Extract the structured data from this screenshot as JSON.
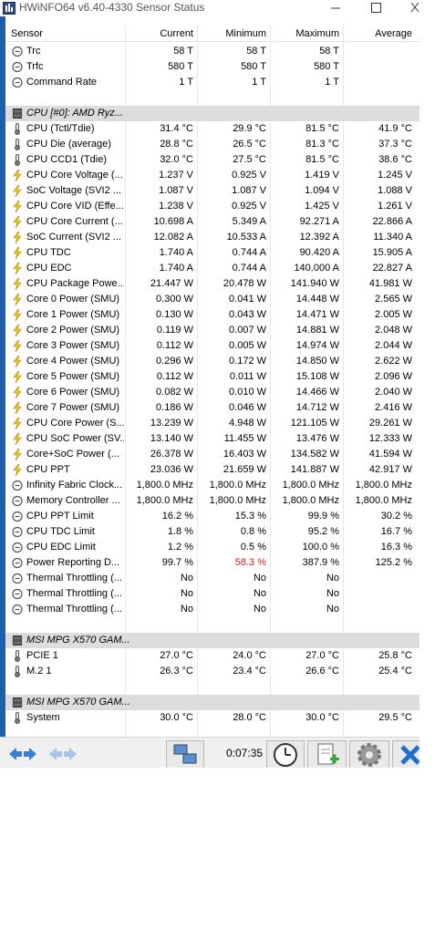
{
  "window": {
    "title": "HWiNFO64 v6.40-4330 Sensor Status"
  },
  "header": [
    "Sensor",
    "Current",
    "Minimum",
    "Maximum",
    "Average"
  ],
  "sections": [
    {
      "rows": [
        {
          "icon": "clock",
          "name": "Trc",
          "values": [
            "58 T",
            "58 T",
            "58 T"
          ]
        },
        {
          "icon": "clock",
          "name": "Trfc",
          "values": [
            "580 T",
            "580 T",
            "580 T"
          ]
        },
        {
          "icon": "clock",
          "name": "Command Rate",
          "values": [
            "1 T",
            "1 T",
            "1 T"
          ]
        }
      ]
    },
    {
      "title": "CPU [#0]: AMD Ryz...",
      "rows": [
        {
          "icon": "temp",
          "name": "CPU (Tctl/Tdie)",
          "values": [
            "31.4 °C",
            "29.9 °C",
            "81.5 °C",
            "41.9 °C"
          ]
        },
        {
          "icon": "temp",
          "name": "CPU Die (average)",
          "values": [
            "28.8 °C",
            "26.5 °C",
            "81.3 °C",
            "37.3 °C"
          ]
        },
        {
          "icon": "temp",
          "name": "CPU CCD1 (Tdie)",
          "values": [
            "32.0 °C",
            "27.5 °C",
            "81.5 °C",
            "38.6 °C"
          ]
        },
        {
          "icon": "volt",
          "name": "CPU Core Voltage (...",
          "values": [
            "1.237 V",
            "0.925 V",
            "1.419 V",
            "1.245 V"
          ]
        },
        {
          "icon": "volt",
          "name": "SoC Voltage (SVI2 ...",
          "values": [
            "1.087 V",
            "1.087 V",
            "1.094 V",
            "1.088 V"
          ]
        },
        {
          "icon": "volt",
          "name": "CPU Core VID (Effe...",
          "values": [
            "1.238 V",
            "0.925 V",
            "1.425 V",
            "1.261 V"
          ]
        },
        {
          "icon": "volt",
          "name": "CPU Core Current (...",
          "values": [
            "10.698 A",
            "5.349 A",
            "92.271 A",
            "22.866 A"
          ]
        },
        {
          "icon": "volt",
          "name": "SoC Current (SVI2 ...",
          "values": [
            "12.082 A",
            "10.533 A",
            "12.392 A",
            "11.340 A"
          ]
        },
        {
          "icon": "volt",
          "name": "CPU TDC",
          "values": [
            "1.740 A",
            "0.744 A",
            "90.420 A",
            "15.905 A"
          ]
        },
        {
          "icon": "volt",
          "name": "CPU EDC",
          "values": [
            "1.740 A",
            "0.744 A",
            "140.000 A",
            "22.827 A"
          ]
        },
        {
          "icon": "volt",
          "name": "CPU Package Powe...",
          "values": [
            "21.447 W",
            "20.478 W",
            "141.940 W",
            "41.981 W"
          ]
        },
        {
          "icon": "volt",
          "name": "Core 0 Power (SMU)",
          "values": [
            "0.300 W",
            "0.041 W",
            "14.448 W",
            "2.565 W"
          ]
        },
        {
          "icon": "volt",
          "name": "Core 1 Power (SMU)",
          "values": [
            "0.130 W",
            "0.043 W",
            "14.471 W",
            "2.005 W"
          ]
        },
        {
          "icon": "volt",
          "name": "Core 2 Power (SMU)",
          "values": [
            "0.119 W",
            "0.007 W",
            "14.881 W",
            "2.048 W"
          ]
        },
        {
          "icon": "volt",
          "name": "Core 3 Power (SMU)",
          "values": [
            "0.112 W",
            "0.005 W",
            "14.974 W",
            "2.044 W"
          ]
        },
        {
          "icon": "volt",
          "name": "Core 4 Power (SMU)",
          "values": [
            "0.296 W",
            "0.172 W",
            "14.850 W",
            "2.622 W"
          ]
        },
        {
          "icon": "volt",
          "name": "Core 5 Power (SMU)",
          "values": [
            "0.112 W",
            "0.011 W",
            "15.108 W",
            "2.096 W"
          ]
        },
        {
          "icon": "volt",
          "name": "Core 6 Power (SMU)",
          "values": [
            "0.082 W",
            "0.010 W",
            "14.466 W",
            "2.040 W"
          ]
        },
        {
          "icon": "volt",
          "name": "Core 7 Power (SMU)",
          "values": [
            "0.186 W",
            "0.046 W",
            "14.712 W",
            "2.416 W"
          ]
        },
        {
          "icon": "volt",
          "name": "CPU Core Power (S...",
          "values": [
            "13.239 W",
            "4.948 W",
            "121.105 W",
            "29.261 W"
          ]
        },
        {
          "icon": "volt",
          "name": "CPU SoC Power (SV...",
          "values": [
            "13.140 W",
            "11.455 W",
            "13.476 W",
            "12.333 W"
          ]
        },
        {
          "icon": "volt",
          "name": "Core+SoC Power (...",
          "values": [
            "26.378 W",
            "16.403 W",
            "134.582 W",
            "41.594 W"
          ]
        },
        {
          "icon": "volt",
          "name": "CPU PPT",
          "values": [
            "23.036 W",
            "21.659 W",
            "141.887 W",
            "42.917 W"
          ]
        },
        {
          "icon": "clock",
          "name": "Infinity Fabric Clock...",
          "values": [
            "1,800.0 MHz",
            "1,800.0 MHz",
            "1,800.0 MHz",
            "1,800.0 MHz"
          ]
        },
        {
          "icon": "clock",
          "name": "Memory Controller ...",
          "values": [
            "1,800.0 MHz",
            "1,800.0 MHz",
            "1,800.0 MHz",
            "1,800.0 MHz"
          ]
        },
        {
          "icon": "clock",
          "name": "CPU PPT Limit",
          "values": [
            "16.2 %",
            "15.3 %",
            "99.9 %",
            "30.2 %"
          ]
        },
        {
          "icon": "clock",
          "name": "CPU TDC Limit",
          "values": [
            "1.8 %",
            "0.8 %",
            "95.2 %",
            "16.7 %"
          ]
        },
        {
          "icon": "clock",
          "name": "CPU EDC Limit",
          "values": [
            "1.2 %",
            "0.5 %",
            "100.0 %",
            "16.3 %"
          ]
        },
        {
          "icon": "clock",
          "name": "Power Reporting D...",
          "values": [
            "99.7 %",
            {
              "text": "58.3 %",
              "color": "#d41c1c"
            },
            "387.9 %",
            "125.2 %"
          ]
        },
        {
          "icon": "clock",
          "name": "Thermal Throttling (...",
          "values": [
            "No",
            "No",
            "No"
          ]
        },
        {
          "icon": "clock",
          "name": "Thermal Throttling (...",
          "values": [
            "No",
            "No",
            "No"
          ]
        },
        {
          "icon": "clock",
          "name": "Thermal Throttling (...",
          "values": [
            "No",
            "No",
            "No"
          ]
        }
      ]
    },
    {
      "title": "MSI MPG X570 GAM...",
      "rows": [
        {
          "icon": "temp",
          "name": "PCIE 1",
          "values": [
            "27.0 °C",
            "24.0 °C",
            "27.0 °C",
            "25.8 °C"
          ]
        },
        {
          "icon": "temp",
          "name": "M.2 1",
          "values": [
            "26.3 °C",
            "23.4 °C",
            "26.6 °C",
            "25.4 °C"
          ]
        }
      ]
    },
    {
      "title": "MSI MPG X570 GAM...",
      "rows": [
        {
          "icon": "temp",
          "name": "System",
          "values": [
            "30.0 °C",
            "28.0 °C",
            "30.0 °C",
            "29.5 °C"
          ]
        }
      ]
    }
  ],
  "toolbar": {
    "elapsed": "0:07:35"
  }
}
